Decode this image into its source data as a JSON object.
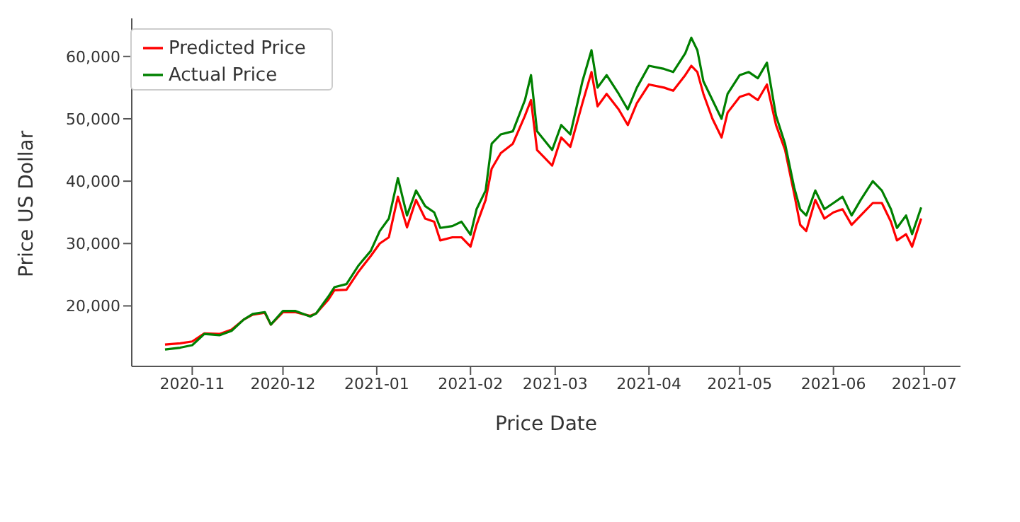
{
  "chart_data": {
    "type": "line",
    "xlabel": "Price Date",
    "ylabel": "Price US Dollar",
    "x": [
      "2020-10-23",
      "2020-10-28",
      "2020-11-01",
      "2020-11-05",
      "2020-11-10",
      "2020-11-14",
      "2020-11-18",
      "2020-11-21",
      "2020-11-25",
      "2020-11-27",
      "2020-12-01",
      "2020-12-05",
      "2020-12-10",
      "2020-12-12",
      "2020-12-16",
      "2020-12-18",
      "2020-12-22",
      "2020-12-26",
      "2020-12-30",
      "2021-01-02",
      "2021-01-05",
      "2021-01-08",
      "2021-01-11",
      "2021-01-14",
      "2021-01-17",
      "2021-01-20",
      "2021-01-22",
      "2021-01-26",
      "2021-01-29",
      "2021-02-01",
      "2021-02-03",
      "2021-02-06",
      "2021-02-08",
      "2021-02-11",
      "2021-02-15",
      "2021-02-19",
      "2021-02-21",
      "2021-02-23",
      "2021-02-28",
      "2021-03-03",
      "2021-03-06",
      "2021-03-10",
      "2021-03-13",
      "2021-03-15",
      "2021-03-18",
      "2021-03-22",
      "2021-03-25",
      "2021-03-28",
      "2021-04-01",
      "2021-04-06",
      "2021-04-09",
      "2021-04-13",
      "2021-04-15",
      "2021-04-17",
      "2021-04-19",
      "2021-04-22",
      "2021-04-25",
      "2021-04-27",
      "2021-05-01",
      "2021-05-04",
      "2021-05-07",
      "2021-05-10",
      "2021-05-13",
      "2021-05-16",
      "2021-05-19",
      "2021-05-21",
      "2021-05-23",
      "2021-05-26",
      "2021-05-29",
      "2021-06-01",
      "2021-06-04",
      "2021-06-07",
      "2021-06-10",
      "2021-06-14",
      "2021-06-17",
      "2021-06-20",
      "2021-06-22",
      "2021-06-25",
      "2021-06-27",
      "2021-06-30"
    ],
    "series": [
      {
        "name": "Predicted Price",
        "color": "#ff0000",
        "values": [
          13800,
          14000,
          14300,
          15600,
          15500,
          16200,
          17800,
          18600,
          18900,
          17000,
          19000,
          19000,
          18400,
          18800,
          21000,
          22500,
          22600,
          25500,
          28000,
          30000,
          31000,
          37500,
          32600,
          37000,
          34000,
          33500,
          30500,
          31000,
          31000,
          29500,
          33000,
          37000,
          42000,
          44500,
          46000,
          50500,
          53000,
          45000,
          42500,
          47000,
          45500,
          52500,
          57500,
          52000,
          54000,
          51500,
          49000,
          52500,
          55500,
          55000,
          54500,
          57000,
          58500,
          57500,
          54000,
          50000,
          47000,
          51000,
          53500,
          54000,
          53000,
          55500,
          49000,
          45000,
          38000,
          33000,
          32000,
          37000,
          34000,
          35000,
          35500,
          33000,
          34500,
          36500,
          36500,
          33500,
          30500,
          31500,
          29500,
          34000
        ]
      },
      {
        "name": "Actual Price",
        "color": "#008000",
        "values": [
          13000,
          13300,
          13700,
          15500,
          15300,
          16000,
          17800,
          18700,
          19000,
          17000,
          19200,
          19200,
          18300,
          18800,
          21500,
          23000,
          23500,
          26500,
          28800,
          32000,
          34000,
          40500,
          34500,
          38500,
          36000,
          35000,
          32500,
          32800,
          33500,
          31400,
          35500,
          38500,
          46000,
          47500,
          48000,
          53000,
          57000,
          48000,
          45000,
          49000,
          47500,
          56000,
          61000,
          55000,
          57000,
          54000,
          51500,
          55000,
          58500,
          58000,
          57500,
          60500,
          63000,
          61000,
          56000,
          53000,
          50000,
          54000,
          57000,
          57500,
          56500,
          59000,
          50500,
          46000,
          39000,
          35500,
          34500,
          38500,
          35500,
          36500,
          37500,
          34500,
          37000,
          40000,
          38500,
          35500,
          32500,
          34500,
          31500,
          35800
        ]
      }
    ],
    "xlim": [
      "2020-10-12",
      "2021-07-13"
    ],
    "xticks": [
      {
        "value": "2020-11-01",
        "label": "2020-11"
      },
      {
        "value": "2020-12-01",
        "label": "2020-12"
      },
      {
        "value": "2021-01-01",
        "label": "2021-01"
      },
      {
        "value": "2021-02-01",
        "label": "2021-02"
      },
      {
        "value": "2021-03-01",
        "label": "2021-03"
      },
      {
        "value": "2021-04-01",
        "label": "2021-04"
      },
      {
        "value": "2021-05-01",
        "label": "2021-05"
      },
      {
        "value": "2021-06-01",
        "label": "2021-06"
      },
      {
        "value": "2021-07-01",
        "label": "2021-07"
      }
    ],
    "ylim": [
      10300,
      66100
    ],
    "yticks": [
      {
        "value": 20000,
        "label": "20,000"
      },
      {
        "value": 30000,
        "label": "30,000"
      },
      {
        "value": 40000,
        "label": "40,000"
      },
      {
        "value": 50000,
        "label": "50,000"
      },
      {
        "value": 60000,
        "label": "60,000"
      }
    ],
    "grid": false,
    "legend": "top left",
    "marker": "none",
    "line_style": "solid"
  }
}
